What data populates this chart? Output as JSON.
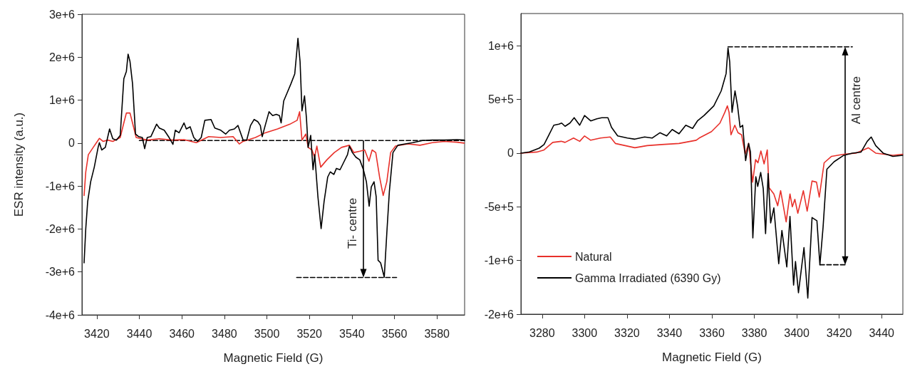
{
  "chart_data": [
    {
      "type": "line",
      "xlabel": "Magnetic Field (G)",
      "ylabel": "ESR intensity (a.u.)",
      "xlim": [
        3413,
        3593
      ],
      "ylim": [
        -4000000,
        3000000
      ],
      "xticks": [
        3420,
        3440,
        3460,
        3480,
        3500,
        3520,
        3540,
        3560,
        3580
      ],
      "yticks": [
        {
          "value": 3000000,
          "label": "3e+6"
        },
        {
          "value": 2000000,
          "label": "2e+6"
        },
        {
          "value": 1000000,
          "label": "1e+6"
        },
        0,
        {
          "value": -1000000,
          "label": "-1e+6"
        },
        {
          "value": -2000000,
          "label": "-2e+6"
        },
        {
          "value": -3000000,
          "label": "-3e+6"
        },
        {
          "value": -4000000,
          "label": "-4e+6"
        }
      ],
      "marker": "none",
      "annotations": [
        {
          "text": "Ti- centre",
          "x": 3545.4,
          "y": -3130000
        }
      ],
      "series": [
        {
          "color": "#000000",
          "line_style": "dashed",
          "x": [
            3440,
            3593
          ],
          "values": [
            60000,
            60000
          ]
        },
        {
          "color": "#000000",
          "line_style": "dashed",
          "x": [
            3514,
            3561
          ],
          "values": [
            -3130000,
            -3130000
          ]
        },
        {
          "color": "#e8302a",
          "x": [
            3414,
            3414.8,
            3416,
            3418.3,
            3421.2,
            3422.9,
            3425.2,
            3427.5,
            3431,
            3432.7,
            3433.9,
            3435.6,
            3437.4,
            3438.5,
            3443.7,
            3449.4,
            3455.3,
            3461,
            3466.8,
            3472.6,
            3478.3,
            3484.1,
            3487,
            3488.8,
            3494.6,
            3499.2,
            3505,
            3510.8,
            3514.2,
            3515.4,
            3516.5,
            3518.3,
            3519.4,
            3521.2,
            3522.4,
            3523.5,
            3525.3,
            3528.2,
            3531.7,
            3535.1,
            3538.8,
            3540.9,
            3543.7,
            3546,
            3548,
            3549.5,
            3551.2,
            3553,
            3554.7,
            3556.4,
            3558.2,
            3560.5,
            3566.3,
            3572,
            3577.8,
            3583.6,
            3589.4,
            3592.8
          ],
          "values": [
            -1220000,
            -670000,
            -270000,
            -100000,
            110000,
            40000,
            70000,
            40000,
            130000,
            470000,
            700000,
            700000,
            350000,
            130000,
            70000,
            100000,
            70000,
            80000,
            10000,
            150000,
            130000,
            150000,
            -20000,
            40000,
            130000,
            240000,
            330000,
            440000,
            530000,
            730000,
            70000,
            210000,
            -100000,
            -160000,
            -330000,
            -70000,
            -560000,
            -390000,
            -220000,
            -100000,
            -50000,
            -220000,
            -190000,
            -160000,
            -420000,
            -160000,
            -220000,
            -790000,
            -1220000,
            -900000,
            -220000,
            -70000,
            -20000,
            -50000,
            10000,
            40000,
            20000,
            0
          ]
        },
        {
          "color": "#000000",
          "x": [
            3414,
            3414.8,
            3415.7,
            3417.1,
            3418.8,
            3420.6,
            3421.2,
            3422.3,
            3424,
            3426,
            3427.5,
            3429.2,
            3431,
            3432.7,
            3433.9,
            3434.7,
            3435.6,
            3436.8,
            3438.2,
            3439.7,
            3441.4,
            3442.5,
            3443.7,
            3445.4,
            3448.1,
            3449.4,
            3451.7,
            3454,
            3455.8,
            3456.9,
            3458.7,
            3461,
            3462.1,
            3463.9,
            3465.6,
            3467.4,
            3469.1,
            3470.8,
            3473.7,
            3475.5,
            3478.3,
            3480.6,
            3482.4,
            3484.7,
            3486.4,
            3488.8,
            3490.5,
            3492.3,
            3494,
            3495.7,
            3496.9,
            3497.8,
            3499.2,
            3501,
            3502.7,
            3504.4,
            3505.9,
            3506.7,
            3507.9,
            3509.6,
            3511.3,
            3513.1,
            3514,
            3514.6,
            3515.6,
            3516.5,
            3517.7,
            3518.6,
            3519.4,
            3520.6,
            3521.7,
            3522.5,
            3524,
            3525.5,
            3526.9,
            3528.6,
            3529.8,
            3531.5,
            3532.7,
            3534.4,
            3536.1,
            3537.9,
            3538.8,
            3540.2,
            3541.9,
            3543.7,
            3545.4,
            3546.8,
            3548.1,
            3549.1,
            3550.4,
            3551.4,
            3552.3,
            3553.5,
            3555.2,
            3556.4,
            3557.6,
            3559.3,
            3561.6,
            3565.1,
            3568.6,
            3573.2,
            3577.8,
            3583.6,
            3589.4,
            3592.8
          ],
          "values": [
            -2790000,
            -1990000,
            -1360000,
            -900000,
            -560000,
            -100000,
            10000,
            -160000,
            -100000,
            330000,
            100000,
            70000,
            180000,
            1500000,
            1670000,
            2070000,
            1900000,
            1380000,
            210000,
            150000,
            130000,
            -130000,
            130000,
            150000,
            440000,
            350000,
            300000,
            130000,
            -30000,
            300000,
            240000,
            470000,
            330000,
            380000,
            130000,
            40000,
            130000,
            530000,
            550000,
            350000,
            300000,
            210000,
            300000,
            330000,
            410000,
            70000,
            70000,
            410000,
            550000,
            500000,
            410000,
            150000,
            410000,
            730000,
            640000,
            670000,
            640000,
            470000,
            980000,
            1180000,
            1380000,
            1610000,
            2100000,
            2440000,
            1900000,
            750000,
            1100000,
            580000,
            -100000,
            180000,
            -620000,
            -270000,
            -1250000,
            -1990000,
            -1360000,
            -790000,
            -670000,
            -730000,
            -590000,
            -620000,
            -450000,
            -270000,
            -70000,
            -220000,
            -330000,
            -390000,
            -620000,
            -900000,
            -1470000,
            -1020000,
            -900000,
            -1250000,
            -2730000,
            -2790000,
            -3120000,
            -2100000,
            -1130000,
            -220000,
            -50000,
            -20000,
            10000,
            60000,
            70000,
            70000,
            80000,
            70000
          ]
        }
      ]
    },
    {
      "type": "line",
      "xlabel": "Magnetic Field (G)",
      "xlim": [
        3270,
        3450
      ],
      "ylim": [
        -1500000,
        1300000
      ],
      "xticks": [
        3280,
        3300,
        3320,
        3340,
        3360,
        3380,
        3400,
        3420,
        3440
      ],
      "yticks": [
        {
          "value": 1000000,
          "label": "1e+6"
        },
        {
          "value": 500000,
          "label": "5e+5"
        },
        0,
        {
          "value": -500000,
          "label": "-5e+5"
        },
        {
          "value": -1000000,
          "label": "-1e+6"
        },
        {
          "value": -1500000,
          "label": "-2e+6"
        }
      ],
      "marker": "none",
      "legend": "bottom left",
      "annotations": [
        {
          "text": "Al centre",
          "x": 3422.8,
          "y": 990000
        }
      ],
      "series": [
        {
          "color": "#000000",
          "line_style": "dashed",
          "x": [
            3367.6,
            3426.2
          ],
          "values": [
            990000,
            990000
          ]
        },
        {
          "color": "#000000",
          "line_style": "dashed",
          "x": [
            3410.9,
            3423.6
          ],
          "values": [
            -1040000,
            -1040000
          ]
        },
        {
          "name": "Natural",
          "color": "#e8302a",
          "x": [
            3270,
            3277.5,
            3280.9,
            3285,
            3289,
            3290.8,
            3294.8,
            3297.7,
            3300,
            3302.9,
            3307.5,
            3312.1,
            3314.5,
            3319.1,
            3323.7,
            3329.5,
            3336.4,
            3344.5,
            3352.6,
            3354,
            3359.8,
            3363.8,
            3366.1,
            3367.3,
            3368.1,
            3369,
            3370.8,
            3372.3,
            3374,
            3375.7,
            3377.3,
            3379.2,
            3380.6,
            3381.7,
            3383.1,
            3384.6,
            3386.1,
            3386.9,
            3389.2,
            3391,
            3392.4,
            3395,
            3396.8,
            3397.9,
            3399.1,
            3400.5,
            3403.1,
            3404.9,
            3407.2,
            3409.3,
            3410.6,
            3412.9,
            3416.4,
            3422.2,
            3427.9,
            3433.7,
            3437.2,
            3445.3,
            3449.9
          ],
          "values": [
            0,
            10000,
            30000,
            100000,
            110000,
            100000,
            140000,
            110000,
            160000,
            120000,
            140000,
            150000,
            90000,
            70000,
            50000,
            70000,
            80000,
            90000,
            120000,
            140000,
            200000,
            280000,
            380000,
            440000,
            380000,
            170000,
            260000,
            190000,
            170000,
            -10000,
            90000,
            -270000,
            -60000,
            -90000,
            20000,
            -100000,
            30000,
            -320000,
            -380000,
            -490000,
            -350000,
            -640000,
            -380000,
            -500000,
            -430000,
            -560000,
            -350000,
            -540000,
            -260000,
            -270000,
            -410000,
            -90000,
            -30000,
            -10000,
            0,
            50000,
            0,
            -20000,
            -10000
          ]
        },
        {
          "name": "Gamma Irradiated (6390 Gy)",
          "color": "#000000",
          "x": [
            3270,
            3274,
            3278.6,
            3280.9,
            3283.2,
            3285.5,
            3287.9,
            3289.2,
            3290.8,
            3293.1,
            3295.1,
            3297.7,
            3300,
            3302.9,
            3305.8,
            3308.1,
            3311,
            3312.7,
            3315.6,
            3320.2,
            3323.7,
            3328.3,
            3331.8,
            3335.5,
            3338.7,
            3341.3,
            3344.5,
            3347.7,
            3350.9,
            3353.2,
            3356.3,
            3360.9,
            3364.4,
            3366.7,
            3367.6,
            3368.4,
            3369.5,
            3370.9,
            3372.1,
            3373.3,
            3374.5,
            3375.9,
            3377.3,
            3378.2,
            3379.3,
            3380.7,
            3381.6,
            3383,
            3384.2,
            3385.3,
            3386.5,
            3387.7,
            3389.2,
            3391.5,
            3393,
            3395.3,
            3396.8,
            3398.5,
            3399.4,
            3400.8,
            3403.4,
            3405.2,
            3407.2,
            3409.5,
            3410.9,
            3412.4,
            3414.2,
            3417.6,
            3422.2,
            3426.2,
            3430.3,
            3433.2,
            3435.1,
            3437.2,
            3440.7,
            3445.3,
            3449.9
          ],
          "values": [
            0,
            11000,
            46000,
            80000,
            170000,
            260000,
            270000,
            280000,
            250000,
            280000,
            330000,
            260000,
            350000,
            300000,
            320000,
            330000,
            330000,
            240000,
            160000,
            140000,
            130000,
            150000,
            140000,
            190000,
            160000,
            220000,
            180000,
            260000,
            230000,
            300000,
            350000,
            440000,
            580000,
            740000,
            980000,
            850000,
            380000,
            580000,
            440000,
            240000,
            260000,
            -70000,
            90000,
            10000,
            -790000,
            -220000,
            -310000,
            -180000,
            -330000,
            -750000,
            -190000,
            -650000,
            -510000,
            -1030000,
            -720000,
            -1060000,
            -590000,
            -1230000,
            -1010000,
            -1300000,
            -880000,
            -1350000,
            -600000,
            -630000,
            -1040000,
            -690000,
            -150000,
            -80000,
            -20000,
            0,
            10000,
            110000,
            150000,
            70000,
            0,
            -30000,
            -20000
          ]
        }
      ]
    }
  ]
}
